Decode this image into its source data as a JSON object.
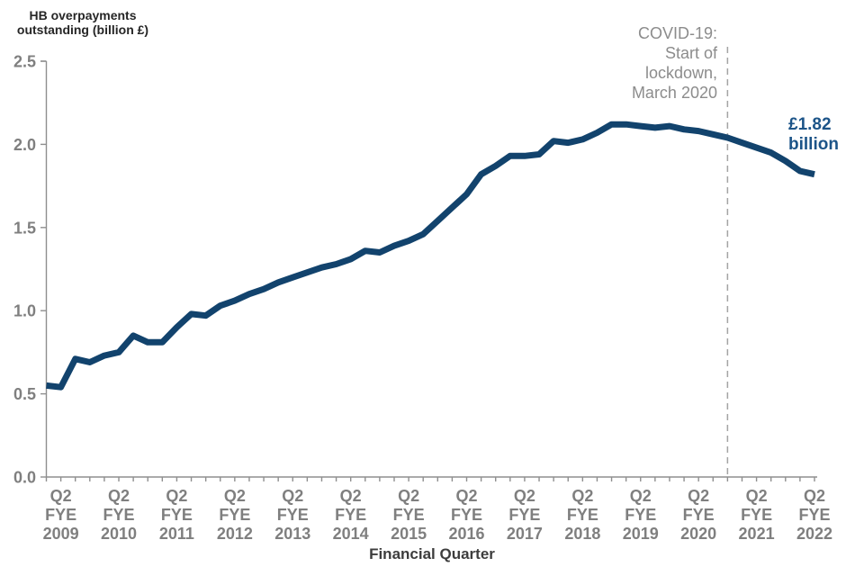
{
  "chart_data": {
    "type": "line",
    "title": "HB overpayments\noutstanding (billion £)",
    "xlabel": "Financial Quarter",
    "ylabel": "HB overpayments outstanding (billion £)",
    "ylim": [
      0,
      2.5
    ],
    "ytick_labels": [
      "2.5",
      "2.0",
      "1.5",
      "1.0",
      "0.5",
      "0.0"
    ],
    "ytick_values": [
      2.5,
      2.0,
      1.5,
      1.0,
      0.5,
      0.0
    ],
    "x_tick_labels": [
      "Q2 FYE 2009",
      "Q2 FYE 2010",
      "Q2 FYE 2011",
      "Q2 FYE 2012",
      "Q2 FYE 2013",
      "Q2 FYE 2014",
      "Q2 FYE 2015",
      "Q2 FYE 2016",
      "Q2 FYE 2017",
      "Q2 FYE 2018",
      "Q2 FYE 2019",
      "Q2 FYE 2020",
      "Q2 FYE 2021",
      "Q2 FYE 2022"
    ],
    "x_tick_indices": [
      1,
      5,
      9,
      13,
      17,
      21,
      25,
      29,
      33,
      37,
      41,
      45,
      49,
      53
    ],
    "x_minor_tick_unit": "quarter",
    "grid": false,
    "legend": "none",
    "series": [
      {
        "name": "HB overpayments outstanding (billion £)",
        "color": "#12436d",
        "values": [
          0.55,
          0.54,
          0.71,
          0.69,
          0.73,
          0.75,
          0.85,
          0.81,
          0.81,
          0.9,
          0.98,
          0.97,
          1.03,
          1.06,
          1.1,
          1.13,
          1.17,
          1.2,
          1.23,
          1.26,
          1.28,
          1.31,
          1.36,
          1.35,
          1.39,
          1.42,
          1.46,
          1.54,
          1.62,
          1.7,
          1.82,
          1.87,
          1.93,
          1.93,
          1.94,
          2.02,
          2.01,
          2.03,
          2.07,
          2.12,
          2.12,
          2.11,
          2.1,
          2.11,
          2.09,
          2.08,
          2.06,
          2.04,
          2.01,
          1.98,
          1.95,
          1.9,
          1.84,
          1.82
        ]
      }
    ],
    "annotation": {
      "text": "COVID-19:\nStart of\nlockdown,\nMarch 2020",
      "vline_quarter_index": 47,
      "vline_meaning": "March 2020"
    },
    "end_label": {
      "text": "£1.82\nbillion",
      "value": 1.82,
      "color": "#1c5488"
    },
    "colors": {
      "line": "#12436d",
      "axis": "#8f8f8f",
      "tick_text": "#7f7f7f",
      "annotation_text": "#8c8c8c",
      "vline": "#a3a3a3",
      "title_text": "#262626",
      "xlabel_text": "#3d3d3d"
    }
  }
}
